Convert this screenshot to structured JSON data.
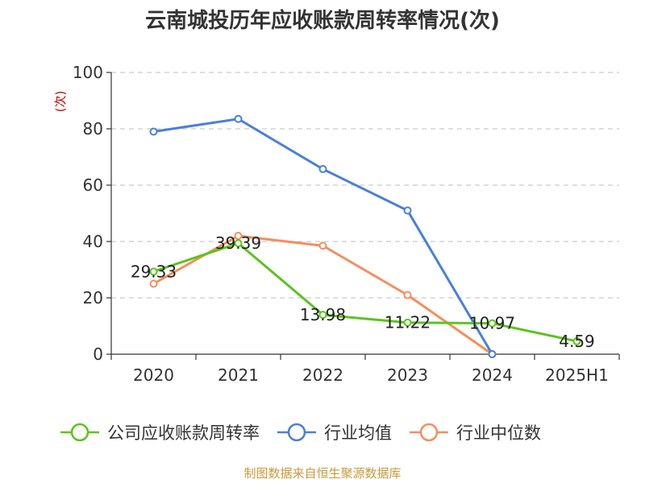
{
  "chart_data": {
    "type": "line",
    "title": "云南城投历年应收账款周转率情况(次)",
    "ylabel": "(次)",
    "xlabel": "",
    "categories": [
      "2020",
      "2021",
      "2022",
      "2023",
      "2024",
      "2025H1"
    ],
    "ylim": [
      0,
      100
    ],
    "yticks": [
      0,
      20,
      40,
      60,
      80,
      100
    ],
    "grid": true,
    "legend_position": "bottom",
    "series": [
      {
        "name": "公司应收账款周转率",
        "color": "#5cc41e",
        "values": [
          29.33,
          39.39,
          13.98,
          11.22,
          10.97,
          4.59
        ],
        "labels": [
          "29.33",
          "39.39",
          "13.98",
          "11.22",
          "10.97",
          "4.59"
        ]
      },
      {
        "name": "行业均值",
        "color": "#4a7fdc",
        "values": [
          79,
          83.5,
          65.7,
          51,
          0,
          null
        ]
      },
      {
        "name": "行业中位数",
        "color": "#f58e5c",
        "values": [
          25,
          42,
          38.5,
          21,
          0,
          null
        ]
      }
    ]
  },
  "source": "制图数据来自恒生聚源数据库"
}
